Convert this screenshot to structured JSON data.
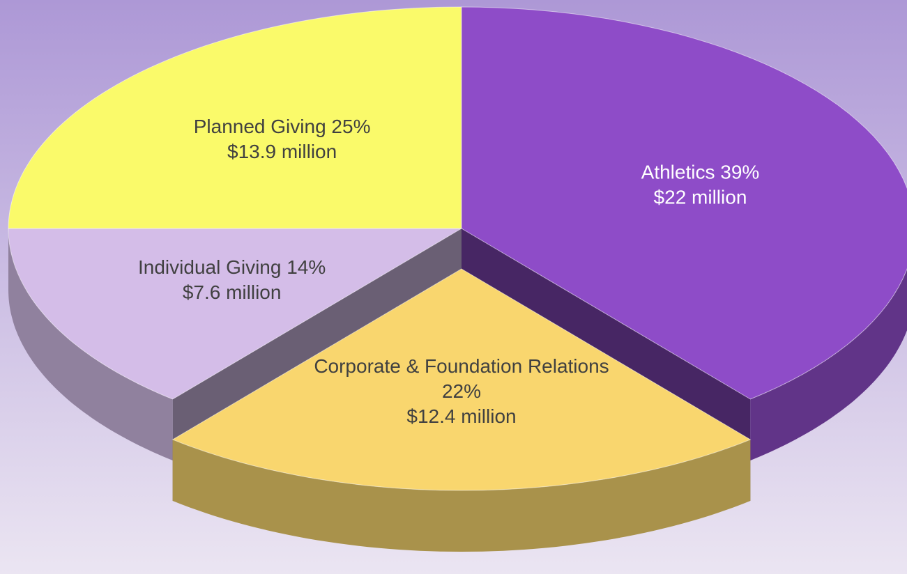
{
  "chart_data": {
    "type": "pie",
    "categories": [
      "Athletics",
      "Corporate & Foundation Relations",
      "Individual Giving",
      "Planned Giving"
    ],
    "values": [
      39,
      22,
      14,
      25
    ],
    "value_labels": [
      "39%",
      "22%",
      "14%",
      "25%"
    ],
    "amounts": [
      22,
      12.4,
      7.6,
      13.9
    ],
    "amount_labels": [
      "$22 million",
      "$12.4 million",
      "$7.6 million",
      "$13.9 million"
    ],
    "colors": [
      "#8e4cc8",
      "#f9d66e",
      "#d4bde8",
      "#fafa6a"
    ],
    "explode": [
      false,
      true,
      false,
      false
    ]
  }
}
